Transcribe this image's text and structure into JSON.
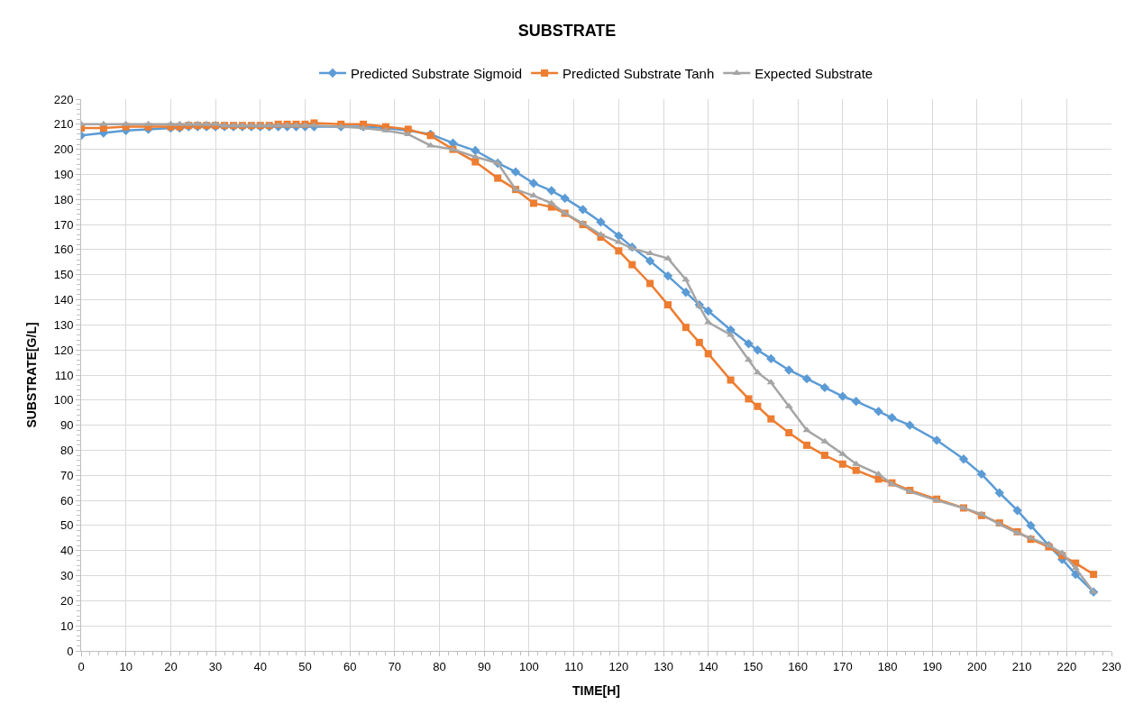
{
  "chart_data": {
    "type": "line",
    "title": "SUBSTRATE",
    "xlabel": "TIME[H]",
    "ylabel": "SUBSTRATE[G/L]",
    "x": [
      0,
      5,
      10,
      15,
      20,
      22,
      24,
      26,
      28,
      30,
      32,
      34,
      36,
      38,
      40,
      42,
      44,
      46,
      48,
      50,
      52,
      58,
      63,
      68,
      73,
      78,
      83,
      88,
      93,
      97,
      101,
      105,
      108,
      112,
      116,
      120,
      123,
      127,
      131,
      135,
      138,
      140,
      145,
      149,
      151,
      154,
      158,
      162,
      166,
      170,
      173,
      178,
      181,
      185,
      191,
      197,
      201,
      205,
      209,
      212,
      216,
      219,
      222,
      226
    ],
    "series": [
      {
        "name": "Predicted Substrate Sigmoid",
        "color": "#5b9bd5",
        "marker": "diamond",
        "values": [
          205.5,
          206.5,
          207.5,
          208,
          208.5,
          208.5,
          209,
          209,
          209,
          209,
          209,
          209,
          209,
          209,
          209,
          209,
          209,
          209,
          209,
          209,
          209,
          209,
          209,
          208.5,
          207.5,
          206,
          202.5,
          199.5,
          194.5,
          191,
          186.5,
          183.5,
          180.5,
          176,
          171,
          165.5,
          161,
          155.5,
          149.5,
          143,
          138,
          135.5,
          128,
          122.5,
          120,
          116.5,
          112,
          108.5,
          105,
          101.5,
          99.5,
          95.5,
          93,
          90,
          84,
          76.5,
          70.5,
          63,
          56,
          50,
          42,
          36.5,
          30.5,
          23.5
        ]
      },
      {
        "name": "Predicted Substrate Tanh",
        "color": "#ed7d31",
        "marker": "square",
        "values": [
          208.5,
          208.5,
          209,
          209,
          209,
          209,
          209.5,
          209.5,
          209.5,
          209.5,
          209.5,
          209.5,
          209.5,
          209.5,
          209.5,
          209.5,
          210,
          210,
          210,
          210,
          210.5,
          210,
          210,
          209,
          208,
          205.5,
          200,
          195,
          188.5,
          184,
          178.5,
          177,
          174.5,
          170,
          165,
          159.5,
          154,
          146.5,
          138,
          129,
          123,
          118.5,
          108,
          100.5,
          97.5,
          92.5,
          87,
          82,
          78,
          74.5,
          72,
          68.5,
          67,
          64,
          60.5,
          57,
          54,
          51,
          47.5,
          44.5,
          41.5,
          38,
          35,
          30.5
        ]
      },
      {
        "name": "Expected Substrate",
        "color": "#a5a5a5",
        "marker": "triangle",
        "values": [
          210,
          210,
          210,
          210,
          210,
          210,
          210,
          210,
          210,
          210,
          209.5,
          209.5,
          209.5,
          209.5,
          209.5,
          209.5,
          209.5,
          209.5,
          209.5,
          209.5,
          209.5,
          209,
          208.5,
          207.5,
          206,
          201.5,
          200,
          197,
          194.5,
          184,
          181.5,
          178.5,
          174.5,
          170.5,
          166,
          163,
          160.5,
          158.5,
          156.5,
          148,
          137.5,
          131,
          126,
          116,
          111,
          107,
          97.5,
          88,
          83.5,
          78.5,
          74.5,
          70.5,
          66.5,
          63.5,
          60,
          57,
          54.5,
          50.5,
          47,
          45,
          42,
          39,
          33,
          23.5
        ]
      }
    ],
    "xlim": [
      0,
      230
    ],
    "xticks": [
      0,
      10,
      20,
      30,
      40,
      50,
      60,
      70,
      80,
      90,
      100,
      110,
      120,
      130,
      140,
      150,
      160,
      170,
      180,
      190,
      200,
      210,
      220,
      230
    ],
    "ylim": [
      0,
      220
    ],
    "yticks": [
      0,
      10,
      20,
      30,
      40,
      50,
      60,
      70,
      80,
      90,
      100,
      110,
      120,
      130,
      140,
      150,
      160,
      170,
      180,
      190,
      200,
      210,
      220
    ],
    "grid": true,
    "legend": "top",
    "line_style": "solid"
  }
}
